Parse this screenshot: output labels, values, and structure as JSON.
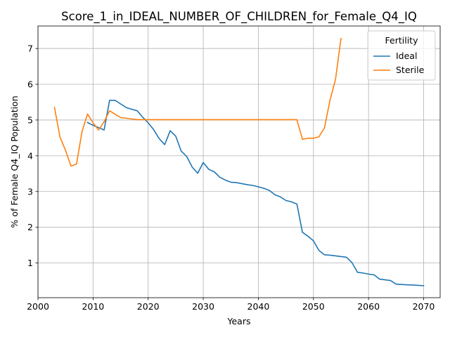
{
  "chart_data": {
    "type": "line",
    "title": "Score_1_in_IDEAL_NUMBER_OF_CHILDREN_for_Female_Q4_IQ",
    "xlabel": "Years",
    "ylabel": "% of Female Q4_IQ Population",
    "xlim": [
      2000,
      2073
    ],
    "ylim": [
      0.03,
      7.63
    ],
    "xticks": [
      2000,
      2010,
      2020,
      2030,
      2040,
      2050,
      2060,
      2070
    ],
    "yticks": [
      1,
      2,
      3,
      4,
      5,
      6,
      7
    ],
    "grid": true,
    "legend": {
      "title": "Fertility",
      "placement": "top-right"
    },
    "series": [
      {
        "name": "Ideal",
        "color": "#1f77b4",
        "x": [
          2009,
          2010,
          2011,
          2012,
          2013,
          2014,
          2015,
          2016,
          2017,
          2018,
          2019,
          2020,
          2021,
          2022,
          2023,
          2024,
          2025,
          2026,
          2027,
          2028,
          2029,
          2030,
          2031,
          2032,
          2033,
          2034,
          2035,
          2036,
          2037,
          2038,
          2039,
          2040,
          2041,
          2042,
          2043,
          2044,
          2045,
          2046,
          2047,
          2048,
          2049,
          2050,
          2051,
          2052,
          2053,
          2054,
          2055,
          2056,
          2057,
          2058,
          2059,
          2060,
          2061,
          2062,
          2063,
          2064,
          2065,
          2066,
          2067,
          2068,
          2069,
          2070
        ],
        "values": [
          4.93,
          4.85,
          4.79,
          4.72,
          5.55,
          5.55,
          5.45,
          5.35,
          5.3,
          5.26,
          5.08,
          4.92,
          4.73,
          4.48,
          4.31,
          4.7,
          4.55,
          4.13,
          3.98,
          3.68,
          3.51,
          3.81,
          3.62,
          3.55,
          3.4,
          3.32,
          3.26,
          3.25,
          3.22,
          3.19,
          3.17,
          3.13,
          3.09,
          3.03,
          2.91,
          2.85,
          2.75,
          2.71,
          2.65,
          1.86,
          1.75,
          1.62,
          1.35,
          1.23,
          1.22,
          1.2,
          1.18,
          1.16,
          1.01,
          0.74,
          0.72,
          0.69,
          0.67,
          0.55,
          0.53,
          0.51,
          0.41,
          0.4,
          0.39,
          0.385,
          0.375,
          0.365
        ]
      },
      {
        "name": "Sterile",
        "color": "#ff7f0e",
        "x": [
          2003,
          2004,
          2005,
          2006,
          2007,
          2008,
          2009,
          2010,
          2011,
          2012,
          2013,
          2014,
          2015,
          2016,
          2017,
          2018,
          2019,
          2020,
          2025,
          2030,
          2035,
          2040,
          2045,
          2047,
          2048,
          2049,
          2050,
          2051,
          2052,
          2053,
          2054,
          2055
        ],
        "values": [
          5.35,
          4.52,
          4.15,
          3.71,
          3.77,
          4.68,
          5.17,
          4.92,
          4.72,
          4.95,
          5.26,
          5.16,
          5.07,
          5.05,
          5.03,
          5.01,
          5.01,
          5.01,
          5.01,
          5.01,
          5.01,
          5.01,
          5.01,
          5.01,
          4.46,
          4.49,
          4.49,
          4.53,
          4.78,
          5.55,
          6.13,
          7.28
        ]
      }
    ]
  }
}
